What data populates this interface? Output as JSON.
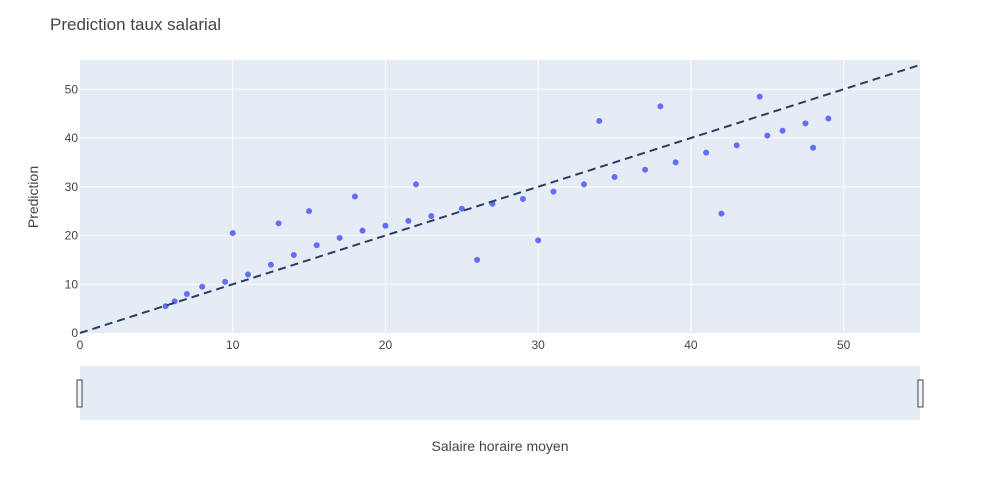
{
  "chart_data": {
    "type": "scatter",
    "title": "Prediction taux salarial",
    "xlabel": "Salaire horaire moyen",
    "ylabel": "Prediction",
    "xlim": [
      0,
      55
    ],
    "ylim": [
      0,
      56
    ],
    "xticks": [
      0,
      10,
      20,
      30,
      40,
      50
    ],
    "yticks": [
      0,
      10,
      20,
      30,
      40,
      50
    ],
    "grid": true,
    "has_rangeslider": true,
    "series": [
      {
        "marker_color": "#636efa",
        "x": [
          5.6,
          6.2,
          7.0,
          8.0,
          9.5,
          11.0,
          12.5,
          14.0,
          15.5,
          17.0,
          18.5,
          20.0,
          21.5,
          23.0,
          25.0,
          27.0,
          29.0,
          31.0,
          33.0,
          35.0,
          37.0,
          39.0,
          41.0,
          43.0,
          45.0,
          46.0,
          47.5,
          49.0,
          10.0,
          13.0,
          15.0,
          18.0,
          22.0,
          26.0,
          30.0,
          34.0,
          38.0,
          42.0,
          44.5,
          48.0
        ],
        "y": [
          5.5,
          6.5,
          8.0,
          9.5,
          10.5,
          12.0,
          14.0,
          16.0,
          18.0,
          19.5,
          21.0,
          22.0,
          23.0,
          24.0,
          25.5,
          26.5,
          27.5,
          29.0,
          30.5,
          32.0,
          33.5,
          35.0,
          37.0,
          38.5,
          40.5,
          41.5,
          43.0,
          44.0,
          20.5,
          22.5,
          25.0,
          28.0,
          30.5,
          15.0,
          19.0,
          43.5,
          46.5,
          24.5,
          48.5,
          38.0
        ]
      },
      {
        "name": "",
        "type": "line",
        "style": "dashed",
        "color": "#2a3f5f",
        "x": [
          0,
          55
        ],
        "y": [
          0,
          55
        ]
      }
    ]
  },
  "colors": {
    "plot_bg": "#e5ecf6",
    "grid": "#ffffff",
    "marker": "#636efa",
    "reference_line": "#2a3f5f",
    "text": "#444444"
  }
}
